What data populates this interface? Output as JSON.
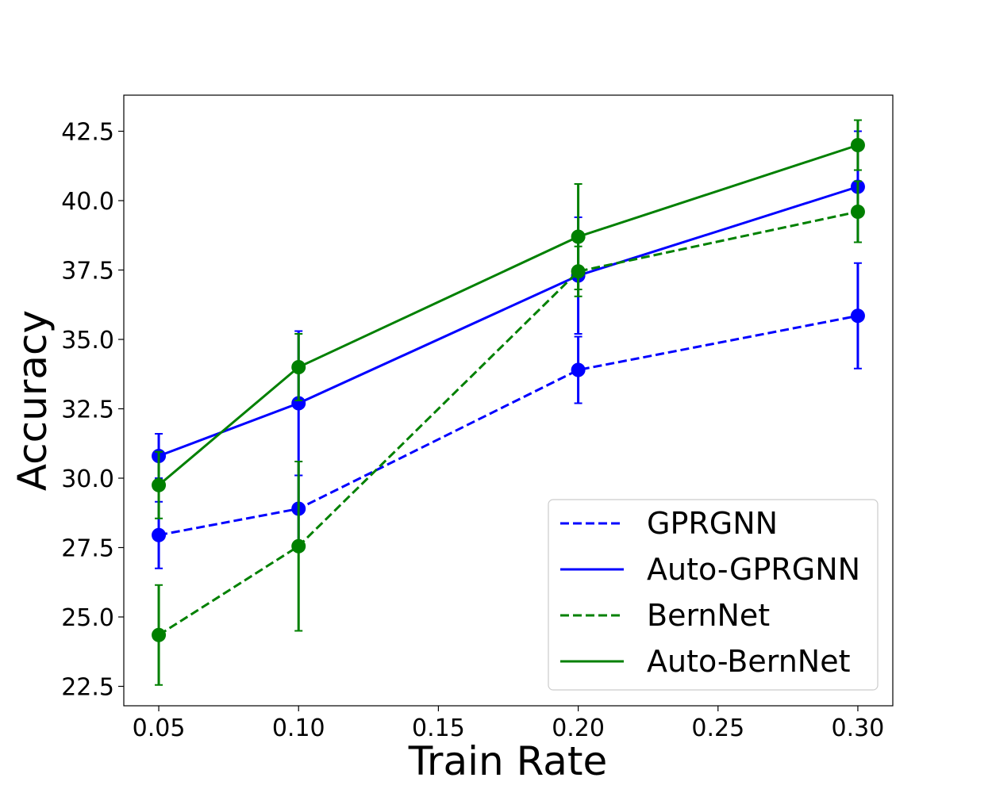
{
  "chart_data": {
    "type": "line",
    "title": "",
    "xlabel": "Train Rate",
    "ylabel": "Accuracy",
    "xlim": [
      0.0375,
      0.3125
    ],
    "ylim": [
      21.8,
      43.8
    ],
    "xticks": [
      0.05,
      0.1,
      0.15,
      0.2,
      0.25,
      0.3
    ],
    "xtick_labels": [
      "0.05",
      "0.10",
      "0.15",
      "0.20",
      "0.25",
      "0.30"
    ],
    "yticks": [
      22.5,
      25.0,
      27.5,
      30.0,
      32.5,
      35.0,
      37.5,
      40.0,
      42.5
    ],
    "ytick_labels": [
      "22.5",
      "25.0",
      "27.5",
      "30.0",
      "32.5",
      "35.0",
      "37.5",
      "40.0",
      "42.5"
    ],
    "grid": false,
    "legend_position": "lower-right",
    "x": [
      0.05,
      0.1,
      0.2,
      0.3
    ],
    "series": [
      {
        "name": "GPRGNN",
        "color": "#0000ff",
        "dashed": true,
        "values": [
          27.95,
          28.9,
          33.9,
          35.85
        ],
        "errors": [
          1.2,
          1.2,
          1.2,
          1.9
        ]
      },
      {
        "name": "Auto-GPRGNN",
        "color": "#0000ff",
        "dashed": false,
        "values": [
          30.8,
          32.7,
          37.3,
          40.5
        ],
        "errors": [
          0.8,
          2.6,
          2.1,
          2.0
        ]
      },
      {
        "name": "BernNet",
        "color": "#008000",
        "dashed": true,
        "values": [
          24.35,
          27.55,
          37.45,
          39.6
        ],
        "errors": [
          1.8,
          3.05,
          0.9,
          1.1
        ]
      },
      {
        "name": "Auto-BernNet",
        "color": "#008000",
        "dashed": false,
        "values": [
          29.75,
          34.0,
          38.7,
          42.0
        ],
        "errors": [
          1.2,
          1.2,
          1.9,
          0.9
        ]
      }
    ]
  }
}
